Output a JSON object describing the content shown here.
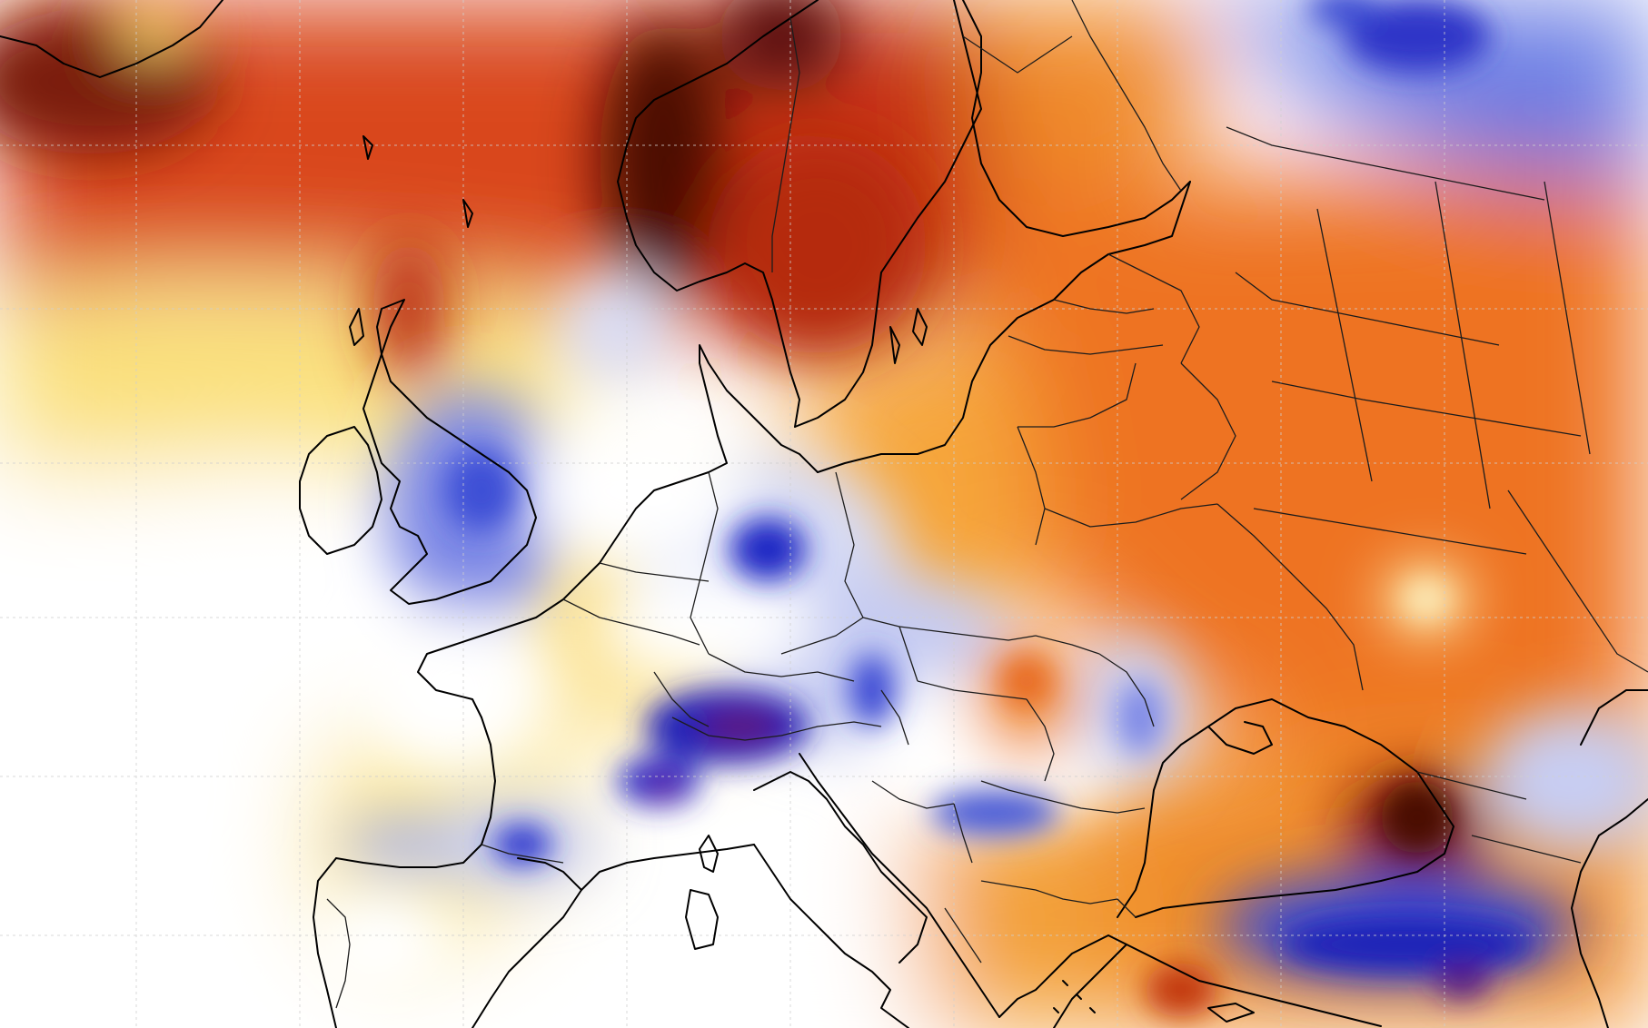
{
  "map": {
    "type": "temperature anomaly map",
    "region": "Europe",
    "graticule": true,
    "colors": {
      "background": "#ffffff",
      "very_warm": "#4a0a05",
      "warm": "#c8320f",
      "mild_warm": "#ee7a23",
      "slight_warm": "#f7c94a",
      "near_zero": "#ffffff",
      "slight_cool": "#c9cff3",
      "cool": "#3a4fd6",
      "very_cool": "#14149a",
      "extreme_cool": "#6a1a7a",
      "coastline": "#000000",
      "border": "#1a1a1a",
      "grid": "#d6d6d6"
    }
  }
}
